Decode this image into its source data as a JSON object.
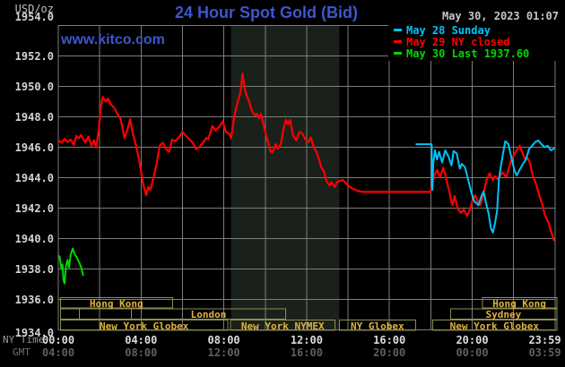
{
  "meta": {
    "title": "24 Hour Spot Gold (Bid)",
    "timestamp": "May 30, 2023 01:07",
    "watermark": "www.kitco.com",
    "y_unit": "USD/oz",
    "x_label_ny": "NY Time",
    "x_label_gmt": "GMT"
  },
  "colors": {
    "background": "#000000",
    "title_blue": "#3e56cd",
    "grid": "#7d7d7d",
    "nymex_band": "#1a211a",
    "session_border": "#8d8d52",
    "session_text": "#dfb23f",
    "may28_cyan": "#00c2f8",
    "may29_red": "#ff0000",
    "may30_green": "#00d800",
    "tick_text": "#d4d4d4",
    "gmt_text": "#5f5f5f"
  },
  "legend": {
    "items": [
      {
        "label": "May 28 Sunday",
        "color": "#00c2f8"
      },
      {
        "label": "May 29 NY closed",
        "color": "#ff0000"
      },
      {
        "label": "May 30 Last 1937.60",
        "color": "#00d800"
      }
    ]
  },
  "chart_data": {
    "type": "line",
    "title": "24 Hour Spot Gold (Bid)",
    "ylabel": "USD/oz",
    "ylim": [
      1934.0,
      1954.0
    ],
    "ytick_step": 2.0,
    "x_hours_range": [
      0,
      24
    ],
    "grid": true,
    "last_price": 1937.6,
    "nymex_shading_hours": [
      8.35,
      13.58
    ],
    "xticks": [
      {
        "h": 0,
        "ny": "00:00",
        "gmt": "04:00"
      },
      {
        "h": 4,
        "ny": "04:00",
        "gmt": "08:00"
      },
      {
        "h": 8,
        "ny": "08:00",
        "gmt": "12:00"
      },
      {
        "h": 12,
        "ny": "12:00",
        "gmt": "16:00"
      },
      {
        "h": 16,
        "ny": "16:00",
        "gmt": "20:00"
      },
      {
        "h": 20,
        "ny": "20:00",
        "gmt": "00:00"
      },
      {
        "h": 23.983,
        "ny": "23:59",
        "gmt": "03:59"
      }
    ],
    "series": [
      {
        "name": "May 29 NY closed",
        "color": "#ff0000",
        "width": 2.2,
        "points": [
          [
            0.0,
            1946.45
          ],
          [
            0.15,
            1946.3
          ],
          [
            0.3,
            1946.55
          ],
          [
            0.45,
            1946.35
          ],
          [
            0.6,
            1946.5
          ],
          [
            0.75,
            1946.15
          ],
          [
            0.87,
            1946.75
          ],
          [
            1.0,
            1946.6
          ],
          [
            1.1,
            1946.8
          ],
          [
            1.3,
            1946.3
          ],
          [
            1.45,
            1946.7
          ],
          [
            1.6,
            1946.1
          ],
          [
            1.72,
            1946.45
          ],
          [
            1.83,
            1946.0
          ],
          [
            1.95,
            1947.1
          ],
          [
            2.05,
            1948.6
          ],
          [
            2.15,
            1949.3
          ],
          [
            2.3,
            1949.0
          ],
          [
            2.4,
            1949.2
          ],
          [
            2.55,
            1948.8
          ],
          [
            2.7,
            1948.6
          ],
          [
            2.85,
            1948.2
          ],
          [
            3.0,
            1947.9
          ],
          [
            3.1,
            1947.3
          ],
          [
            3.2,
            1946.6
          ],
          [
            3.35,
            1947.2
          ],
          [
            3.47,
            1947.85
          ],
          [
            3.6,
            1946.9
          ],
          [
            3.76,
            1946.1
          ],
          [
            3.9,
            1945.2
          ],
          [
            4.04,
            1944.05
          ],
          [
            4.15,
            1943.3
          ],
          [
            4.25,
            1942.85
          ],
          [
            4.35,
            1943.4
          ],
          [
            4.45,
            1943.2
          ],
          [
            4.6,
            1944.0
          ],
          [
            4.75,
            1944.9
          ],
          [
            4.9,
            1946.1
          ],
          [
            5.05,
            1946.3
          ],
          [
            5.2,
            1945.9
          ],
          [
            5.35,
            1945.7
          ],
          [
            5.5,
            1946.5
          ],
          [
            5.65,
            1946.4
          ],
          [
            5.8,
            1946.6
          ],
          [
            6.0,
            1947.0
          ],
          [
            6.2,
            1946.7
          ],
          [
            6.35,
            1946.5
          ],
          [
            6.5,
            1946.3
          ],
          [
            6.65,
            1945.9
          ],
          [
            6.8,
            1946.0
          ],
          [
            7.0,
            1946.3
          ],
          [
            7.15,
            1946.6
          ],
          [
            7.25,
            1946.55
          ],
          [
            7.45,
            1947.4
          ],
          [
            7.6,
            1947.1
          ],
          [
            7.75,
            1947.3
          ],
          [
            7.95,
            1947.7
          ],
          [
            8.1,
            1947.0
          ],
          [
            8.25,
            1946.9
          ],
          [
            8.35,
            1946.6
          ],
          [
            8.5,
            1948.0
          ],
          [
            8.65,
            1948.9
          ],
          [
            8.8,
            1949.6
          ],
          [
            8.9,
            1950.85
          ],
          [
            9.0,
            1949.9
          ],
          [
            9.1,
            1949.4
          ],
          [
            9.2,
            1949.1
          ],
          [
            9.35,
            1948.4
          ],
          [
            9.5,
            1948.1
          ],
          [
            9.6,
            1948.2
          ],
          [
            9.7,
            1947.9
          ],
          [
            9.8,
            1948.2
          ],
          [
            9.9,
            1947.6
          ],
          [
            10.0,
            1947.0
          ],
          [
            10.1,
            1946.5
          ],
          [
            10.25,
            1945.75
          ],
          [
            10.35,
            1945.65
          ],
          [
            10.5,
            1946.2
          ],
          [
            10.6,
            1945.9
          ],
          [
            10.75,
            1946.2
          ],
          [
            10.9,
            1947.3
          ],
          [
            11.0,
            1947.8
          ],
          [
            11.1,
            1947.5
          ],
          [
            11.2,
            1947.8
          ],
          [
            11.35,
            1946.75
          ],
          [
            11.5,
            1946.45
          ],
          [
            11.65,
            1947.0
          ],
          [
            11.8,
            1946.9
          ],
          [
            11.95,
            1946.5
          ],
          [
            12.1,
            1946.35
          ],
          [
            12.2,
            1946.65
          ],
          [
            12.35,
            1946.0
          ],
          [
            12.5,
            1945.6
          ],
          [
            12.6,
            1945.2
          ],
          [
            12.7,
            1944.7
          ],
          [
            12.85,
            1944.4
          ],
          [
            12.95,
            1943.8
          ],
          [
            13.1,
            1943.5
          ],
          [
            13.2,
            1943.7
          ],
          [
            13.35,
            1943.4
          ],
          [
            13.5,
            1943.75
          ],
          [
            13.75,
            1943.85
          ],
          [
            14.0,
            1943.5
          ],
          [
            14.2,
            1943.3
          ],
          [
            14.45,
            1943.15
          ],
          [
            14.7,
            1943.07
          ],
          [
            15.5,
            1943.07
          ],
          [
            16.5,
            1943.07
          ],
          [
            17.5,
            1943.07
          ],
          [
            17.97,
            1943.07
          ],
          [
            18.05,
            1943.3
          ],
          [
            18.15,
            1944.1
          ],
          [
            18.3,
            1944.5
          ],
          [
            18.45,
            1944.05
          ],
          [
            18.6,
            1944.65
          ],
          [
            18.7,
            1944.2
          ],
          [
            18.8,
            1943.6
          ],
          [
            18.9,
            1943.1
          ],
          [
            19.0,
            1942.4
          ],
          [
            19.05,
            1942.2
          ],
          [
            19.15,
            1942.8
          ],
          [
            19.3,
            1942.0
          ],
          [
            19.45,
            1941.7
          ],
          [
            19.6,
            1941.9
          ],
          [
            19.75,
            1941.5
          ],
          [
            19.9,
            1941.9
          ],
          [
            20.0,
            1942.45
          ],
          [
            20.15,
            1942.85
          ],
          [
            20.3,
            1942.3
          ],
          [
            20.4,
            1942.2
          ],
          [
            20.55,
            1943.0
          ],
          [
            20.7,
            1943.9
          ],
          [
            20.85,
            1944.3
          ],
          [
            21.0,
            1943.85
          ],
          [
            21.1,
            1944.1
          ],
          [
            21.25,
            1943.9
          ],
          [
            21.45,
            1944.35
          ],
          [
            21.65,
            1944.05
          ],
          [
            21.9,
            1945.2
          ],
          [
            22.1,
            1945.7
          ],
          [
            22.3,
            1946.1
          ],
          [
            22.45,
            1945.55
          ],
          [
            22.55,
            1945.25
          ],
          [
            22.65,
            1945.35
          ],
          [
            22.8,
            1944.95
          ],
          [
            22.9,
            1944.25
          ],
          [
            23.1,
            1943.55
          ],
          [
            23.25,
            1942.8
          ],
          [
            23.4,
            1942.2
          ],
          [
            23.5,
            1941.6
          ],
          [
            23.7,
            1941.0
          ],
          [
            23.8,
            1940.5
          ],
          [
            23.95,
            1939.9
          ]
        ]
      },
      {
        "name": "May 28 Sunday",
        "color": "#00c2f8",
        "width": 2,
        "points": [
          [
            17.3,
            1946.2
          ],
          [
            18.04,
            1946.2
          ],
          [
            18.07,
            1943.2
          ],
          [
            18.12,
            1944.9
          ],
          [
            18.2,
            1945.8
          ],
          [
            18.3,
            1945.2
          ],
          [
            18.4,
            1945.7
          ],
          [
            18.55,
            1945.0
          ],
          [
            18.7,
            1945.8
          ],
          [
            18.85,
            1945.4
          ],
          [
            19.0,
            1944.8
          ],
          [
            19.1,
            1945.75
          ],
          [
            19.25,
            1945.6
          ],
          [
            19.4,
            1944.6
          ],
          [
            19.5,
            1944.9
          ],
          [
            19.65,
            1944.7
          ],
          [
            19.8,
            1943.9
          ],
          [
            19.95,
            1943.1
          ],
          [
            20.1,
            1942.45
          ],
          [
            20.3,
            1942.2
          ],
          [
            20.45,
            1942.8
          ],
          [
            20.55,
            1943.1
          ],
          [
            20.65,
            1942.45
          ],
          [
            20.8,
            1941.6
          ],
          [
            20.9,
            1940.7
          ],
          [
            21.0,
            1940.4
          ],
          [
            21.1,
            1941.0
          ],
          [
            21.2,
            1941.8
          ],
          [
            21.3,
            1944.0
          ],
          [
            21.45,
            1945.3
          ],
          [
            21.6,
            1946.4
          ],
          [
            21.75,
            1946.2
          ],
          [
            21.9,
            1945.3
          ],
          [
            22.05,
            1944.45
          ],
          [
            22.15,
            1944.15
          ],
          [
            22.3,
            1944.55
          ],
          [
            22.45,
            1944.9
          ],
          [
            22.6,
            1945.2
          ],
          [
            22.75,
            1945.9
          ],
          [
            22.9,
            1946.1
          ],
          [
            23.05,
            1946.35
          ],
          [
            23.2,
            1946.45
          ],
          [
            23.35,
            1946.2
          ],
          [
            23.5,
            1946.0
          ],
          [
            23.65,
            1946.1
          ],
          [
            23.8,
            1945.8
          ],
          [
            23.95,
            1945.9
          ]
        ]
      },
      {
        "name": "May 30",
        "color": "#00d800",
        "width": 2,
        "points": [
          [
            0.05,
            1938.85
          ],
          [
            0.1,
            1938.5
          ],
          [
            0.15,
            1938.0
          ],
          [
            0.2,
            1938.3
          ],
          [
            0.25,
            1937.3
          ],
          [
            0.3,
            1937.05
          ],
          [
            0.38,
            1938.3
          ],
          [
            0.45,
            1938.6
          ],
          [
            0.52,
            1938.1
          ],
          [
            0.6,
            1938.95
          ],
          [
            0.7,
            1939.35
          ],
          [
            0.8,
            1938.95
          ],
          [
            0.9,
            1938.75
          ],
          [
            1.0,
            1938.45
          ],
          [
            1.1,
            1938.15
          ],
          [
            1.2,
            1937.6
          ]
        ]
      }
    ],
    "sessions": [
      {
        "row": 0,
        "h0": 0.1,
        "h1": 5.52,
        "label": "Hong Kong"
      },
      {
        "row": 0,
        "h0": 20.5,
        "h1": 24.1,
        "label": "Hong Kong"
      },
      {
        "row": 1,
        "h0": 0.1,
        "h1": 1.01,
        "label": ""
      },
      {
        "row": 1,
        "h0": 1.01,
        "h1": 3.54,
        "label": ""
      },
      {
        "row": 1,
        "h0": 3.54,
        "h1": 10.98,
        "label": "London"
      },
      {
        "row": 1,
        "h0": 18.97,
        "h1": 24.1,
        "label": "Sydney"
      },
      {
        "row": 2,
        "h0": 0.1,
        "h1": 8.19,
        "label": "New York Globex"
      },
      {
        "row": 2,
        "h0": 8.33,
        "h1": 13.36,
        "label": "New York NYMEX"
      },
      {
        "row": 2,
        "h0": 13.58,
        "h1": 17.26,
        "label": "NY Globex"
      },
      {
        "row": 2,
        "h0": 18.1,
        "h1": 24.1,
        "label": "New York Globex"
      }
    ]
  }
}
